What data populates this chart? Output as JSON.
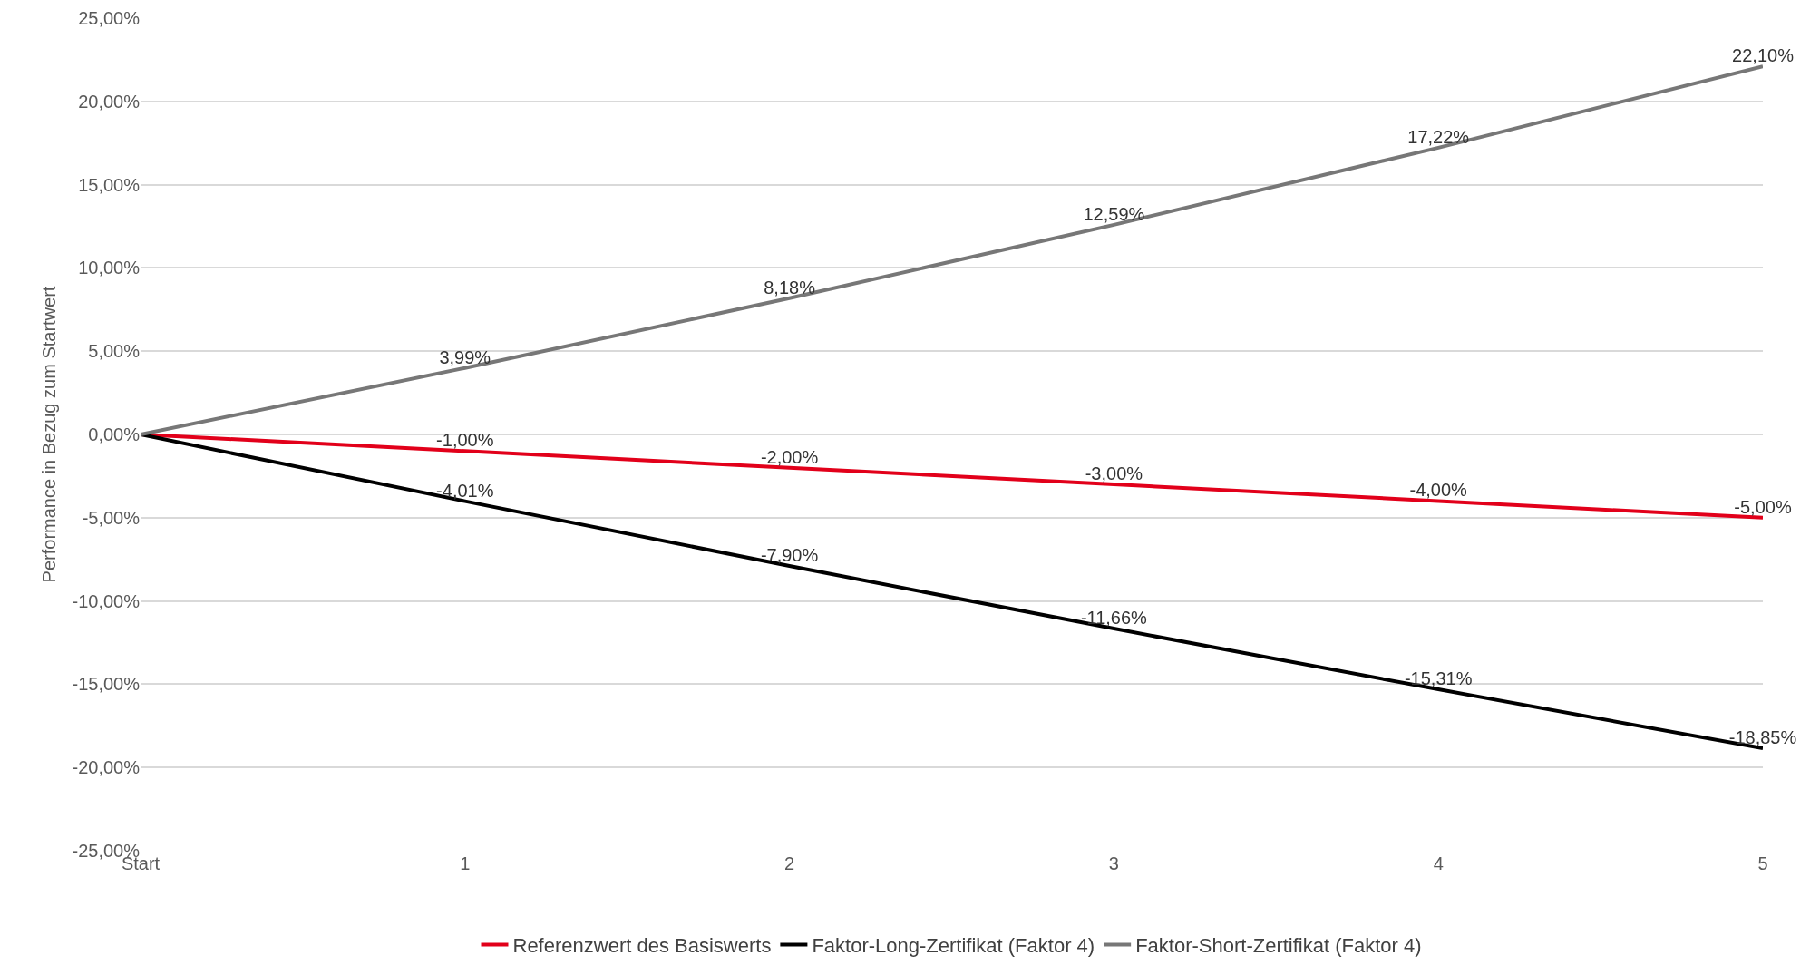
{
  "chart_data": {
    "type": "line",
    "ylabel": "Performance in Bezug zum Startwert",
    "categories": [
      "Start",
      "1",
      "2",
      "3",
      "4",
      "5"
    ],
    "series": [
      {
        "name": "Referenzwert des Basiswerts",
        "color": "#e2001a",
        "values": [
          0,
          -1,
          -2,
          -3,
          -4,
          -5
        ],
        "value_labels": [
          null,
          "-1,00%",
          "-2,00%",
          "-3,00%",
          "-4,00%",
          "-5,00%"
        ]
      },
      {
        "name": "Faktor-Long-Zertifikat (Faktor 4)",
        "color": "#000000",
        "values": [
          0,
          -4.01,
          -7.9,
          -11.66,
          -15.31,
          -18.85
        ],
        "value_labels": [
          null,
          "-4,01%",
          "-7,90%",
          "-11,66%",
          "-15,31%",
          "-18,85%"
        ]
      },
      {
        "name": "Faktor-Short-Zertifikat (Faktor 4)",
        "color": "#777777",
        "values": [
          0,
          3.99,
          8.18,
          12.59,
          17.22,
          22.1
        ],
        "value_labels": [
          null,
          "3,99%",
          "8,18%",
          "12,59%",
          "17,22%",
          "22,10%"
        ]
      }
    ],
    "ylim": [
      -25,
      25
    ],
    "yticks": [
      {
        "value": -25,
        "label": "-25,00%"
      },
      {
        "value": -20,
        "label": "-20,00%"
      },
      {
        "value": -15,
        "label": "-15,00%"
      },
      {
        "value": -10,
        "label": "-10,00%"
      },
      {
        "value": -5,
        "label": "-5,00%"
      },
      {
        "value": 0,
        "label": "0,00%"
      },
      {
        "value": 5,
        "label": "5,00%"
      },
      {
        "value": 10,
        "label": "10,00%"
      },
      {
        "value": 15,
        "label": "15,00%"
      },
      {
        "value": 20,
        "label": "20,00%"
      },
      {
        "value": 25,
        "label": "25,00%"
      }
    ],
    "grid": "y",
    "legend": "bottom"
  }
}
